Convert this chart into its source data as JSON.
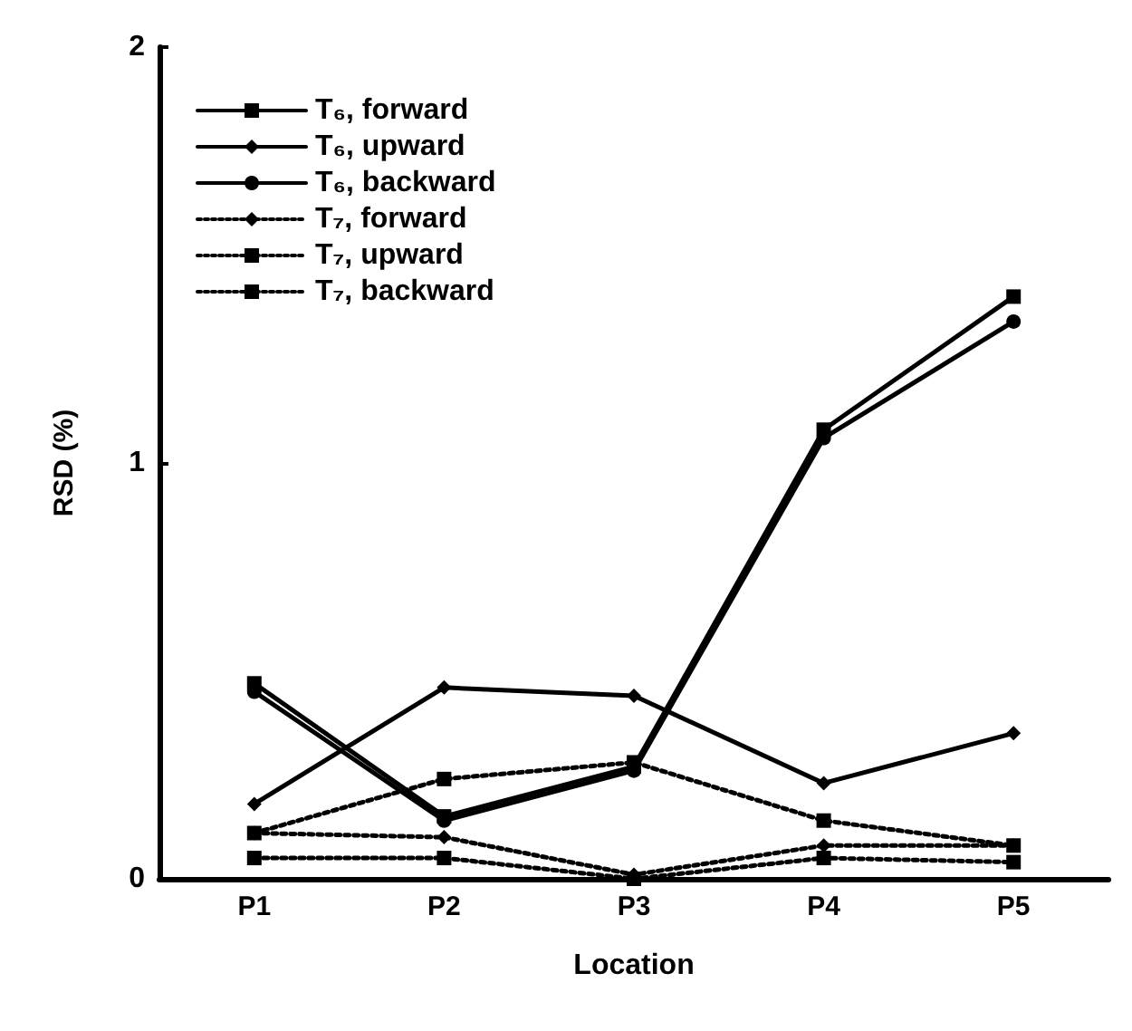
{
  "chart_data": {
    "type": "line",
    "xlabel": "Location",
    "ylabel": "RSD (%)",
    "categories": [
      "P1",
      "P2",
      "P3",
      "P4",
      "P5"
    ],
    "ylim": [
      0,
      2
    ],
    "yticks": [
      0,
      1,
      2
    ],
    "grid": false,
    "legend": "top left",
    "series": [
      {
        "name": "T₆, forward",
        "color": "#000000",
        "line_style": "solid",
        "marker": "square",
        "values": [
          0.47,
          0.15,
          0.27,
          1.08,
          1.4
        ]
      },
      {
        "name": "T₆, upward",
        "color": "#000000",
        "line_style": "solid",
        "marker": "diamond",
        "values": [
          0.18,
          0.46,
          0.44,
          0.23,
          0.35
        ]
      },
      {
        "name": "T₆, backward",
        "color": "#000000",
        "line_style": "solid",
        "marker": "circle",
        "values": [
          0.45,
          0.14,
          0.26,
          1.06,
          1.34
        ]
      },
      {
        "name": "T₇, forward",
        "color": "#000000",
        "line_style": "dotted",
        "marker": "diamond",
        "values": [
          0.11,
          0.1,
          0.01,
          0.08,
          0.08
        ]
      },
      {
        "name": "T₇, upward",
        "color": "#000000",
        "line_style": "dotted",
        "marker": "square",
        "values": [
          0.11,
          0.24,
          0.28,
          0.14,
          0.08
        ]
      },
      {
        "name": "T₇, backward",
        "color": "#000000",
        "line_style": "dotted",
        "marker": "square",
        "values": [
          0.05,
          0.05,
          0.0,
          0.05,
          0.04
        ]
      }
    ]
  }
}
